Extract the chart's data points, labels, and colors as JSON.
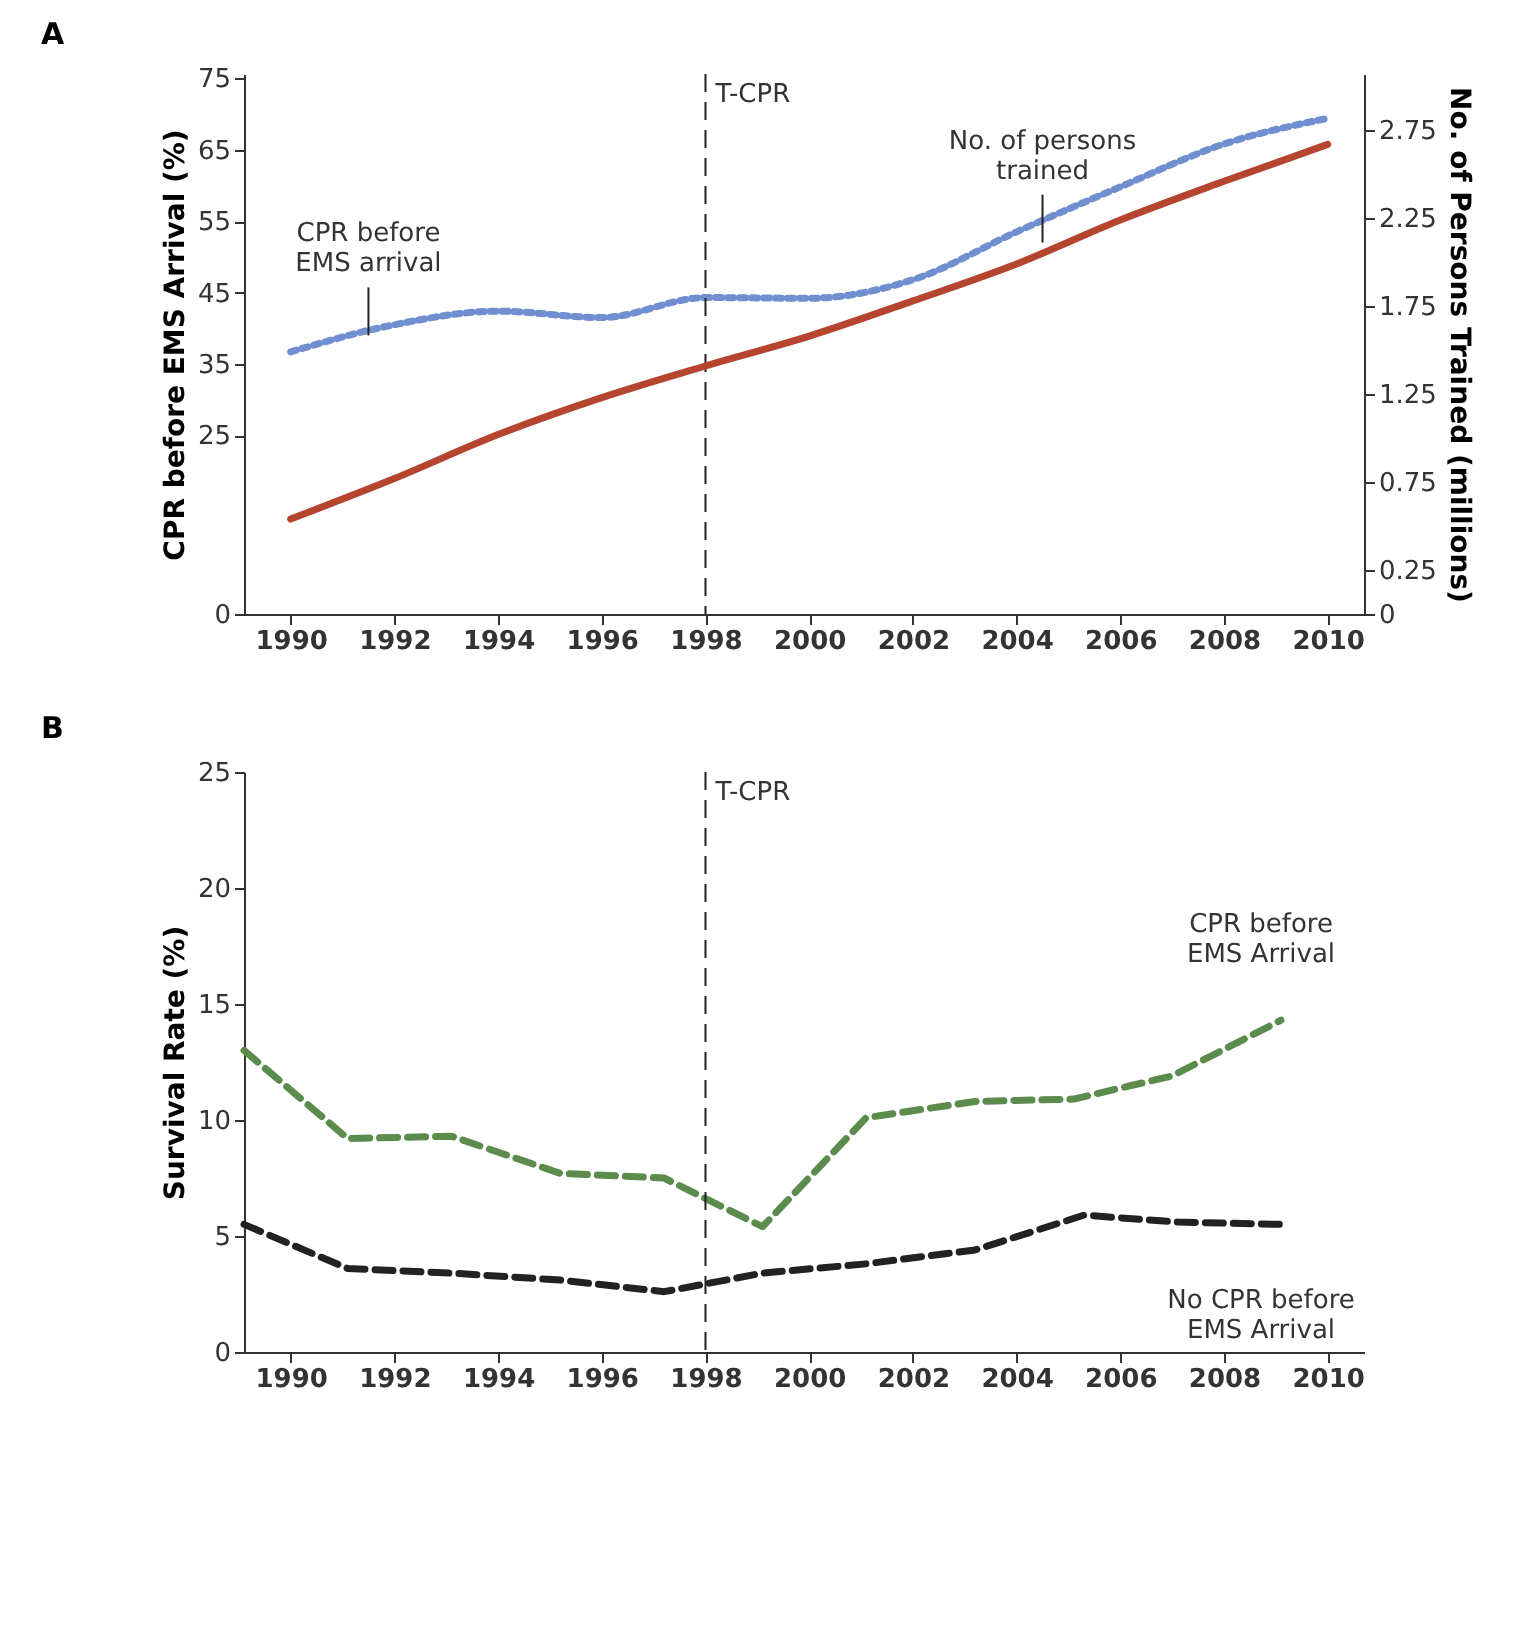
{
  "chart_data": [
    {
      "type": "line",
      "title": "A",
      "ylabel": "CPR before EMS Arrival (%)",
      "y2label": "No. of Persons Trained (millions)",
      "x": [
        1990,
        1992,
        1994,
        1996,
        1998,
        2000,
        2002,
        2004,
        2006,
        2008,
        2010
      ],
      "series": [
        {
          "color": "#6f8fd0",
          "line_style": "dotted",
          "values": [
            36.7,
            40.5,
            42.4,
            41.5,
            44.3,
            44.2,
            46.8,
            53.5,
            59.8,
            65.8,
            69.4
          ]
        },
        {
          "color": "#b5452f",
          "line_style": "solid",
          "axis": "y2",
          "values": [
            0.54,
            0.77,
            1.02,
            1.23,
            1.41,
            1.58,
            1.78,
            1.99,
            2.24,
            2.46,
            2.67
          ]
        }
      ],
      "xlim": [
        1989.1,
        2010.7
      ],
      "xticks": [
        1990,
        1992,
        1994,
        1996,
        1998,
        2000,
        2002,
        2004,
        2006,
        2008,
        2010
      ],
      "ylim": [
        0,
        75.6
      ],
      "yticks": [
        0,
        25,
        35,
        45,
        55,
        65,
        75
      ],
      "y2lim": [
        0,
        3.07
      ],
      "y2ticks": [
        0,
        0.25,
        0.75,
        1.25,
        1.75,
        2.25,
        2.75
      ],
      "ref_lines": [
        {
          "axis": "x",
          "value": 1998,
          "label": "T-CPR",
          "line_style": "dashed",
          "color": "#222222"
        }
      ],
      "annotations": [
        {
          "text": "CPR before\nEMS arrival",
          "x": 1991.5,
          "y": 39.0
        },
        {
          "text": "No. of persons\ntrained",
          "x": 2004.5,
          "y": 52.0
        }
      ],
      "grid": false
    },
    {
      "type": "line",
      "title": "B",
      "ylabel": "Survival Rate (%)",
      "series": [
        {
          "name": "CPR before\nEMS Arrival",
          "color": "#5b8c4e",
          "line_style": "dashed",
          "x": [
            1989.1,
            1991.1,
            1993.1,
            1995.2,
            1997.2,
            1999.1,
            2001.1,
            2003.2,
            2005.1,
            2007.0,
            2009.1
          ],
          "values": [
            13.0,
            9.2,
            9.3,
            7.7,
            7.5,
            5.4,
            10.1,
            10.8,
            10.9,
            11.9,
            14.3
          ]
        },
        {
          "name": "No CPR before\nEMS Arrival",
          "color": "#222222",
          "line_style": "dashed",
          "x": [
            1989.1,
            1991.1,
            1993.1,
            1995.2,
            1997.2,
            1999.1,
            2001.1,
            2003.2,
            2005.3,
            2007.1,
            2009.1
          ],
          "values": [
            5.5,
            3.6,
            3.4,
            3.1,
            2.6,
            3.4,
            3.8,
            4.4,
            5.9,
            5.6,
            5.5
          ]
        }
      ],
      "xlim": [
        1989.1,
        2010.7
      ],
      "xticks": [
        1990,
        1992,
        1994,
        1996,
        1998,
        2000,
        2002,
        2004,
        2006,
        2008,
        2010
      ],
      "ylim": [
        0,
        25
      ],
      "yticks": [
        0,
        5,
        10,
        15,
        20,
        25
      ],
      "ref_lines": [
        {
          "axis": "x",
          "value": 1998,
          "label": "T-CPR",
          "line_style": "dashed",
          "color": "#222222"
        }
      ],
      "grid": false
    }
  ]
}
